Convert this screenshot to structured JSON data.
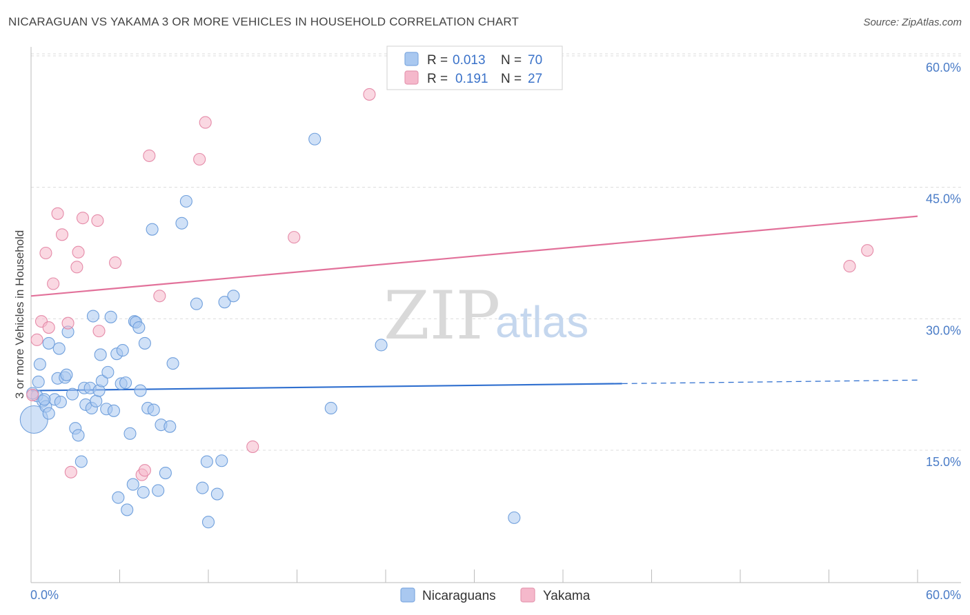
{
  "header": {
    "title": "NICARAGUAN VS YAKAMA 3 OR MORE VEHICLES IN HOUSEHOLD CORRELATION CHART",
    "source": "Source: ZipAtlas.com"
  },
  "watermark": {
    "part1": "ZIP",
    "part2": "atlas"
  },
  "legend": {
    "rows": [
      {
        "r_label": "R =",
        "r_value": "0.013",
        "n_label": "N =",
        "n_value": "70",
        "color": "#a9c8f0"
      },
      {
        "r_label": "R =",
        "r_value": "0.191",
        "n_label": "N =",
        "n_value": "27",
        "color": "#f5b8cb"
      }
    ]
  },
  "bottom_legend": {
    "series1": "Nicaraguans",
    "series2": "Yakama"
  },
  "chart_data": {
    "type": "scatter",
    "title": "NICARAGUAN VS YAKAMA 3 OR MORE VEHICLES IN HOUSEHOLD CORRELATION CHART",
    "xlabel": "",
    "ylabel": "3 or more Vehicles in Household",
    "xlim": [
      0,
      60
    ],
    "ylim": [
      0,
      62
    ],
    "x_tick_labels": [
      "0.0%",
      "60.0%"
    ],
    "y_ticks": [
      15,
      30,
      45,
      60
    ],
    "y_tick_labels": [
      "15.0%",
      "30.0%",
      "45.0%",
      "60.0%"
    ],
    "grid": true,
    "series": [
      {
        "name": "Nicaraguans",
        "color": "#a9c8f0",
        "stroke": "#6f9fdc",
        "points": [
          [
            0.2,
            18.5
          ],
          [
            0.4,
            21.2
          ],
          [
            0.5,
            22.8
          ],
          [
            0.6,
            24.8
          ],
          [
            0.8,
            20.6
          ],
          [
            1.0,
            20.0
          ],
          [
            1.2,
            27.2
          ],
          [
            1.2,
            19.2
          ],
          [
            1.6,
            20.8
          ],
          [
            1.8,
            23.2
          ],
          [
            1.9,
            26.6
          ],
          [
            2.0,
            20.5
          ],
          [
            2.3,
            23.3
          ],
          [
            2.4,
            23.6
          ],
          [
            2.5,
            28.5
          ],
          [
            2.8,
            21.4
          ],
          [
            3.0,
            17.5
          ],
          [
            3.2,
            16.7
          ],
          [
            3.4,
            13.7
          ],
          [
            3.6,
            22.1
          ],
          [
            3.7,
            20.2
          ],
          [
            4.0,
            22.1
          ],
          [
            4.1,
            19.8
          ],
          [
            4.2,
            30.3
          ],
          [
            4.4,
            20.6
          ],
          [
            4.6,
            21.8
          ],
          [
            4.7,
            25.9
          ],
          [
            4.8,
            22.9
          ],
          [
            5.1,
            19.7
          ],
          [
            5.2,
            23.9
          ],
          [
            5.4,
            30.2
          ],
          [
            5.6,
            19.5
          ],
          [
            5.8,
            26.0
          ],
          [
            5.9,
            9.6
          ],
          [
            6.1,
            22.6
          ],
          [
            6.2,
            26.4
          ],
          [
            6.4,
            22.7
          ],
          [
            6.5,
            8.2
          ],
          [
            6.7,
            16.9
          ],
          [
            6.9,
            11.1
          ],
          [
            7.0,
            29.7
          ],
          [
            7.1,
            29.6
          ],
          [
            7.3,
            29.0
          ],
          [
            7.4,
            21.8
          ],
          [
            7.6,
            10.2
          ],
          [
            7.7,
            27.2
          ],
          [
            7.9,
            19.8
          ],
          [
            8.2,
            40.2
          ],
          [
            8.3,
            19.6
          ],
          [
            8.6,
            10.4
          ],
          [
            8.8,
            17.9
          ],
          [
            9.1,
            12.4
          ],
          [
            9.4,
            17.7
          ],
          [
            9.6,
            24.9
          ],
          [
            10.2,
            40.9
          ],
          [
            10.5,
            43.4
          ],
          [
            11.2,
            31.7
          ],
          [
            11.6,
            10.7
          ],
          [
            11.9,
            13.7
          ],
          [
            12.0,
            6.8
          ],
          [
            12.6,
            10.0
          ],
          [
            12.9,
            13.8
          ],
          [
            13.1,
            31.9
          ],
          [
            13.7,
            32.6
          ],
          [
            19.2,
            50.5
          ],
          [
            20.3,
            19.8
          ],
          [
            23.7,
            27.0
          ],
          [
            32.7,
            7.3
          ],
          [
            0.1,
            21.5
          ],
          [
            0.9,
            20.8
          ]
        ],
        "trend": {
          "x": [
            0,
            40,
            60
          ],
          "y": [
            21.8,
            22.6,
            23.0
          ],
          "solid_until": 40
        }
      },
      {
        "name": "Yakama",
        "color": "#f5b8cb",
        "stroke": "#e58aa8",
        "points": [
          [
            0.1,
            21.3
          ],
          [
            0.4,
            27.6
          ],
          [
            0.7,
            29.7
          ],
          [
            1.0,
            37.5
          ],
          [
            1.2,
            29.0
          ],
          [
            1.5,
            34.0
          ],
          [
            1.8,
            42.0
          ],
          [
            2.1,
            39.6
          ],
          [
            2.5,
            29.5
          ],
          [
            2.7,
            12.5
          ],
          [
            3.1,
            35.9
          ],
          [
            3.2,
            37.6
          ],
          [
            3.5,
            41.5
          ],
          [
            4.5,
            41.2
          ],
          [
            4.6,
            28.6
          ],
          [
            5.7,
            36.4
          ],
          [
            7.5,
            12.2
          ],
          [
            7.7,
            12.7
          ],
          [
            8.0,
            48.6
          ],
          [
            8.7,
            32.6
          ],
          [
            11.4,
            48.2
          ],
          [
            11.8,
            52.4
          ],
          [
            15.0,
            15.4
          ],
          [
            17.8,
            39.3
          ],
          [
            22.9,
            55.6
          ],
          [
            55.4,
            36.0
          ],
          [
            56.6,
            37.8
          ]
        ],
        "trend": {
          "x": [
            0,
            60
          ],
          "y": [
            32.6,
            41.7
          ]
        }
      }
    ]
  }
}
